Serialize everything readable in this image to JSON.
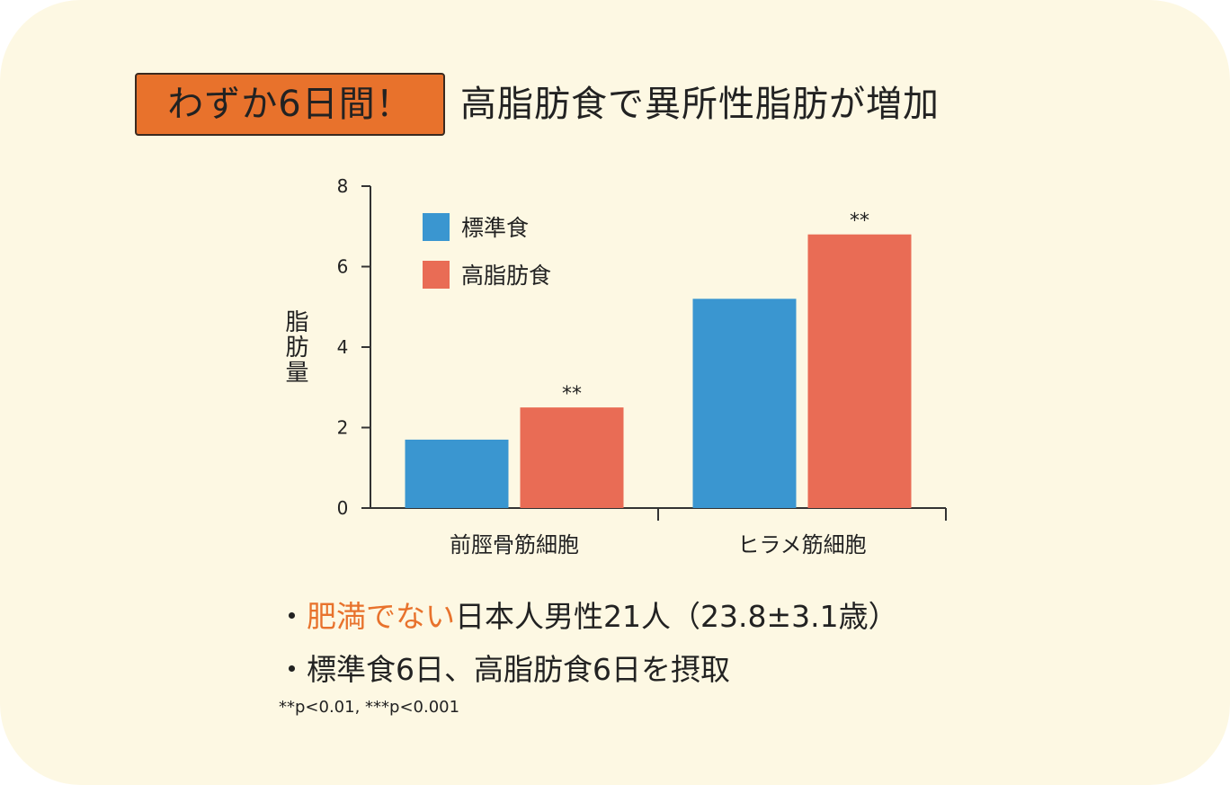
{
  "header": {
    "badge": "わずか6日間！",
    "title": "高脂肪食で異所性脂肪が増加"
  },
  "chart_data": {
    "type": "bar",
    "categories": [
      "前脛骨筋細胞",
      "ヒラメ筋細胞"
    ],
    "series": [
      {
        "name": "標準食",
        "values": [
          1.7,
          5.2
        ],
        "color": "#3a96d0"
      },
      {
        "name": "高脂肪食",
        "values": [
          2.5,
          6.8
        ],
        "color": "#e96c55"
      }
    ],
    "annotations": [
      {
        "category": "前脛骨筋細胞",
        "series": "高脂肪食",
        "text": "**"
      },
      {
        "category": "ヒラメ筋細胞",
        "series": "高脂肪食",
        "text": "**"
      }
    ],
    "ylabel": "脂肪量",
    "xlabel": "",
    "ylim": [
      0,
      8
    ],
    "yticks": [
      0,
      2,
      4,
      6,
      8
    ],
    "legend": "top-left",
    "grid": false
  },
  "notes": {
    "bullet1_mark": "・",
    "bullet1_highlight": "肥満でない",
    "bullet1_rest": "日本人男性21人（23.8±3.1歳）",
    "bullet2_mark": "・",
    "bullet2_text": "標準食6日、高脂肪食6日を摂取",
    "footnote": "**p<0.01, ***p<0.001"
  }
}
